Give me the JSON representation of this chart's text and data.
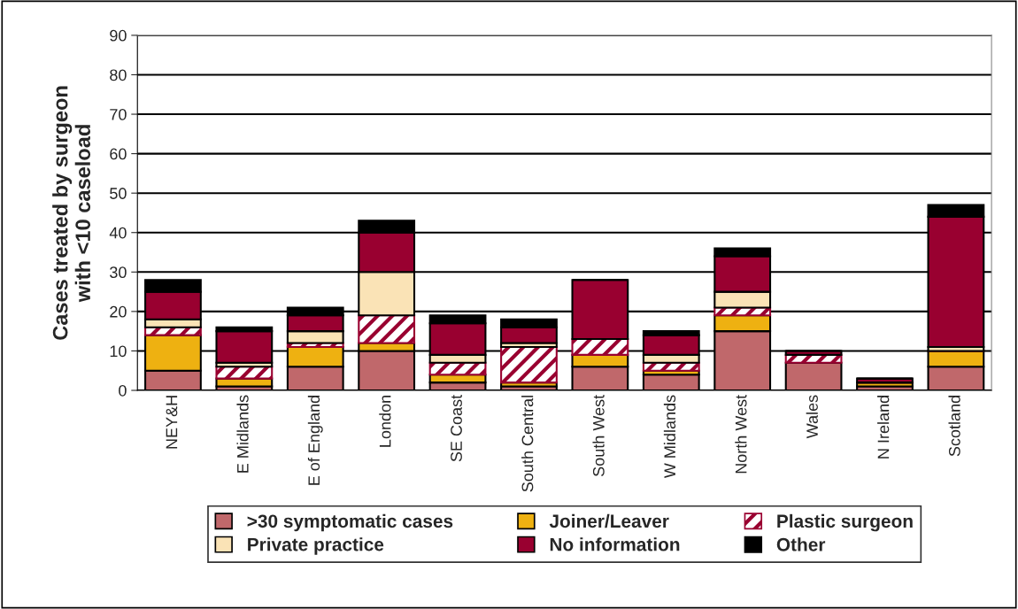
{
  "chart_data": {
    "type": "bar",
    "stacked": true,
    "ylabel": "Cases treated by surgeon\nwith <10 caseload",
    "categories": [
      "NEY&H",
      "E Midlands",
      "E of England",
      "London",
      "SE Coast",
      "South Central",
      "South West",
      "W Midlands",
      "North West",
      "Wales",
      "N Ireland",
      "Scotland"
    ],
    "series": [
      {
        "name": ">30 symptomatic cases",
        "color": "#c0686b",
        "values": [
          5,
          1,
          6,
          10,
          2,
          1,
          6,
          4,
          15,
          7,
          1,
          6
        ]
      },
      {
        "name": "Joiner/Leaver",
        "color": "#eeb111",
        "values": [
          9,
          2,
          5,
          2,
          2,
          1,
          3,
          1,
          4,
          0,
          1,
          4
        ]
      },
      {
        "name": "Plastic surgeon",
        "color": "#990030",
        "values": [
          2,
          3,
          1,
          7,
          3,
          9,
          4,
          2,
          2,
          2,
          0,
          0
        ]
      },
      {
        "name": "Private practice",
        "color": "#fae3b6",
        "values": [
          2,
          1,
          3,
          11,
          2,
          1,
          0,
          2,
          4,
          0,
          0,
          1
        ]
      },
      {
        "name": "No information",
        "color": "#990030",
        "values": [
          7,
          8,
          4,
          10,
          8,
          4,
          15,
          5,
          9,
          1,
          1,
          33
        ]
      },
      {
        "name": "Other",
        "color": "#000000",
        "values": [
          3,
          1,
          2,
          3,
          2,
          2,
          0,
          1,
          2,
          0,
          0,
          3
        ]
      }
    ],
    "ylim": [
      0,
      90
    ],
    "yticks": [
      0,
      10,
      20,
      30,
      40,
      50,
      60,
      70,
      80,
      90
    ],
    "grid": "y",
    "legend": "bottom"
  }
}
